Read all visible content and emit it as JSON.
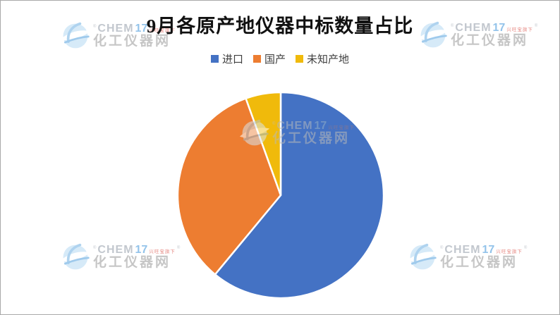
{
  "chart_data": {
    "type": "pie",
    "title": "9月各原产地仪器中标数量占比",
    "categories": [
      "进口",
      "国产",
      "未知产地"
    ],
    "values": [
      61,
      33.5,
      5.5
    ],
    "values_note": "percent share estimated from slice angles; no data labels shown",
    "colors": [
      "#4472C4",
      "#ED7D31",
      "#F0BA0B"
    ],
    "legend_position": "top",
    "start_angle_deg": 0,
    "direction": "clockwise",
    "slice_border_color": "#FFFFFF"
  },
  "watermark": {
    "brand_chem": "CHEM",
    "brand_17": "17",
    "tagline": "兴旺宝旗下",
    "site_name": "化工仪器网",
    "registered_mark": "®"
  }
}
